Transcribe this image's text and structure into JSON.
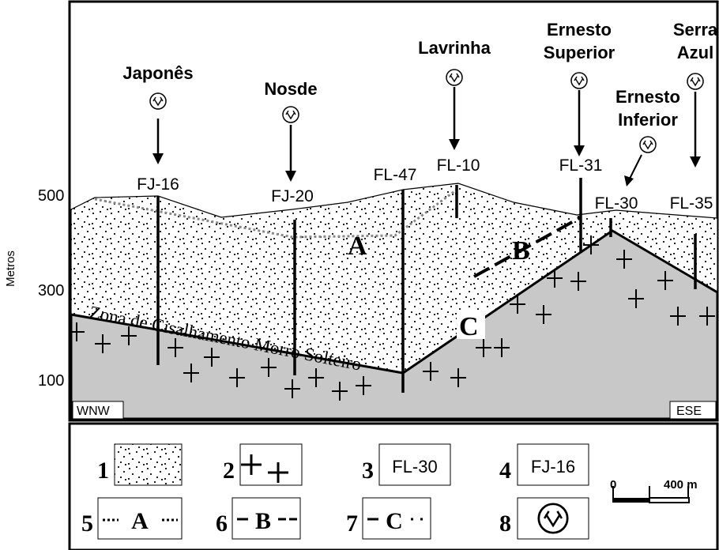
{
  "cross_section": {
    "y_axis": {
      "title": "Metros",
      "labels": [
        "500",
        "300",
        "100"
      ]
    },
    "orientation": {
      "left": "WNW",
      "right": "ESE"
    },
    "mines": [
      {
        "lines": [
          "Japonês"
        ]
      },
      {
        "lines": [
          "Nosde"
        ]
      },
      {
        "lines": [
          "Lavrinha"
        ]
      },
      {
        "lines": [
          "Ernesto",
          "Superior"
        ]
      },
      {
        "lines": [
          "Ernesto",
          "Inferior"
        ]
      },
      {
        "lines": [
          "Serra",
          "Azul"
        ]
      }
    ],
    "drill_holes": [
      "FJ-16",
      "FJ-20",
      "FL-47",
      "FL-10",
      "FL-31",
      "FL-30",
      "FL-35"
    ],
    "markers": [
      "A",
      "B",
      "C"
    ],
    "shear_zone": "Zona de Cisalhamento Morro Solteiro"
  },
  "legend": {
    "items": [
      {
        "number": "1"
      },
      {
        "number": "2"
      },
      {
        "number": "3",
        "text": "FL-30"
      },
      {
        "number": "4",
        "text": "FJ-16"
      },
      {
        "number": "5",
        "text": "A"
      },
      {
        "number": "6",
        "text": "B"
      },
      {
        "number": "7",
        "text": "C"
      },
      {
        "number": "8"
      }
    ],
    "scale": {
      "start": "0",
      "end": "400 m"
    }
  }
}
